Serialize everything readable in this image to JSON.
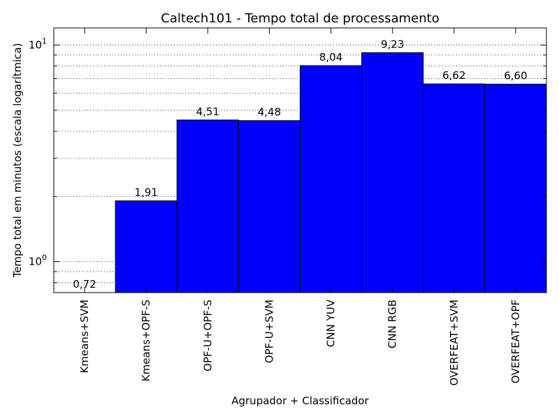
{
  "chart_data": {
    "type": "bar",
    "title": "Caltech101 - Tempo total de processamento",
    "xlabel": "Agrupador + Classificador",
    "ylabel": "Tempo total em minutos (escala logarítmica)",
    "yscale": "log",
    "ylim": [
      0.72,
      12
    ],
    "grid": "y-dotted",
    "bar_color": "#0000ff",
    "y_ticks": [
      {
        "value": 1,
        "base": "10",
        "exp": "0"
      },
      {
        "value": 10,
        "base": "10",
        "exp": "1"
      }
    ],
    "categories": [
      "Kmeans+SVM",
      "Kmeans+OPF-S",
      "OPF-U+OPF-S",
      "OPF-U+SVM",
      "CNN YUV",
      "CNN RGB",
      "OVERFEAT+SVM",
      "OVERFEAT+OPF"
    ],
    "values": [
      0.72,
      1.91,
      4.51,
      4.48,
      8.04,
      9.23,
      6.62,
      6.6
    ],
    "value_labels": [
      "0,72",
      "1,91",
      "4,51",
      "4,48",
      "8,04",
      "9,23",
      "6,62",
      "6,60"
    ]
  }
}
